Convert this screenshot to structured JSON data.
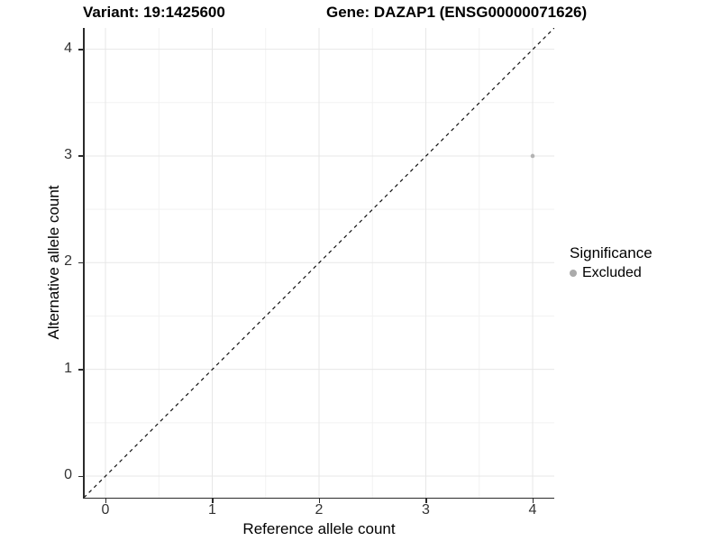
{
  "figure": {
    "title_left": "Variant: 19:1425600",
    "title_right": "Gene: DAZAP1 (ENSG00000071626)"
  },
  "axes": {
    "x_label": "Reference allele count",
    "y_label": "Alternative allele count"
  },
  "legend": {
    "title": "Significance",
    "items": [
      {
        "label": "Excluded",
        "color": "#ababab"
      }
    ]
  },
  "colors": {
    "background": "#ffffff",
    "grid_major": "#e7e7e7",
    "grid_minor": "#f2f2f2",
    "axis_line": "#2b2b2b",
    "tick_text": "#333333",
    "point": "#b3b3b3",
    "identity_line": "#111111"
  },
  "chart_data": {
    "type": "scatter",
    "title": "Variant: 19:1425600 | Gene: DAZAP1 (ENSG00000071626)",
    "xlabel": "Reference allele count",
    "ylabel": "Alternative allele count",
    "xlim": [
      -0.2,
      4.2
    ],
    "ylim": [
      -0.2,
      4.2
    ],
    "x_ticks": [
      0,
      1,
      2,
      3,
      4
    ],
    "y_ticks": [
      0,
      1,
      2,
      3,
      4
    ],
    "x_minor_ticks": [
      0.5,
      1.5,
      2.5,
      3.5
    ],
    "y_minor_ticks": [
      0.5,
      1.5,
      2.5,
      3.5
    ],
    "grid": "major+minor",
    "legend_position": "right",
    "series": [
      {
        "name": "Excluded",
        "color": "#b3b3b3",
        "points": [
          {
            "x": 4,
            "y": 3
          }
        ]
      }
    ],
    "reference_line": {
      "kind": "identity y=x",
      "style": "dashed",
      "color": "#111111"
    }
  }
}
